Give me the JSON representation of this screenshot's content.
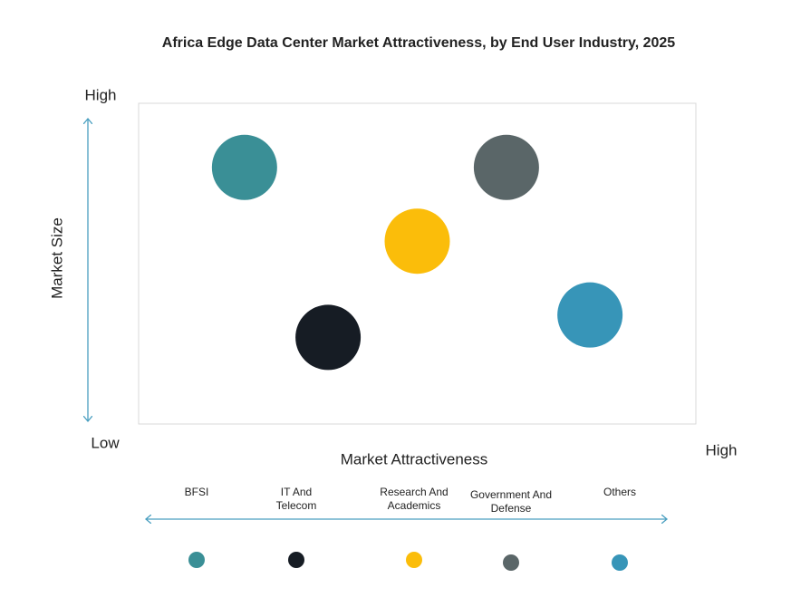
{
  "chart_data": {
    "type": "scatter",
    "title": "Africa Edge Data Center Market Attractiveness,  by End User Industry, 2025",
    "x_label": "Market Attractiveness",
    "y_label": "Market Size",
    "xlim": [
      0,
      10
    ],
    "ylim": [
      0,
      10
    ],
    "xticks": [
      {
        "value": 10,
        "label": "High"
      }
    ],
    "yticks": [
      {
        "value": 0,
        "label": "Low"
      },
      {
        "value": 10,
        "label": "High"
      }
    ],
    "series": [
      {
        "name": "BFSI",
        "color": "#3a8f96",
        "x": 1.9,
        "y": 8.0
      },
      {
        "name": "IT And Telecom",
        "color": "#161c24",
        "x": 3.4,
        "y": 2.7
      },
      {
        "name": "Research And Academics",
        "color": "#fbbd0a",
        "x": 5.0,
        "y": 5.7
      },
      {
        "name": "Government And Defense",
        "color": "#5a6668",
        "x": 6.6,
        "y": 8.0
      },
      {
        "name": "Others",
        "color": "#3795b8",
        "x": 8.1,
        "y": 3.4
      }
    ]
  }
}
